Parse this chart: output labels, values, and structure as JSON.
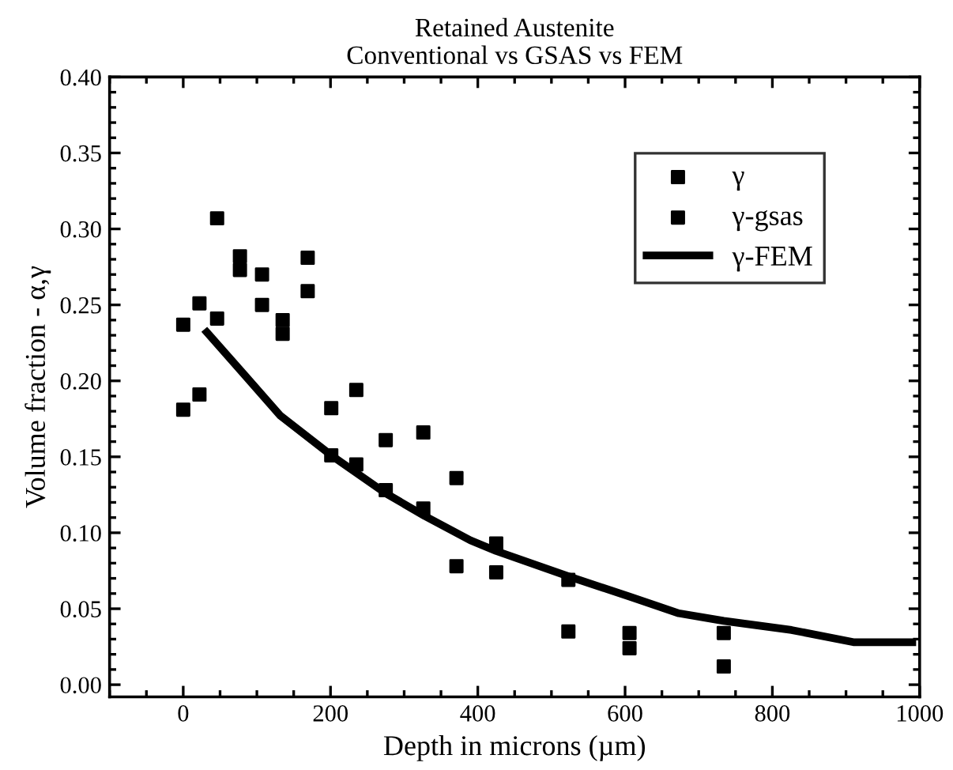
{
  "chart_data": {
    "type": "scatter",
    "title": "Retained Austenite\nConventional vs GSAS vs FEM",
    "xlabel": "Depth in microns (µm)",
    "ylabel": "Volume fraction - α,γ",
    "xlim": [
      -100,
      1000
    ],
    "ylim": [
      -0.008,
      0.4
    ],
    "xticks": [
      {
        "value": -100,
        "label": null
      },
      {
        "value": -50,
        "label": null
      },
      0,
      {
        "value": 50,
        "label": null
      },
      {
        "value": 100,
        "label": null
      },
      {
        "value": 150,
        "label": null
      },
      200,
      {
        "value": 250,
        "label": null
      },
      {
        "value": 300,
        "label": null
      },
      {
        "value": 350,
        "label": null
      },
      400,
      {
        "value": 450,
        "label": null
      },
      {
        "value": 500,
        "label": null
      },
      {
        "value": 550,
        "label": null
      },
      600,
      {
        "value": 650,
        "label": null
      },
      {
        "value": 700,
        "label": null
      },
      {
        "value": 750,
        "label": null
      },
      800,
      {
        "value": 850,
        "label": null
      },
      {
        "value": 900,
        "label": null
      },
      {
        "value": 950,
        "label": null
      },
      1000
    ],
    "yticks": [
      {
        "value": 0,
        "label": "0.00"
      },
      {
        "value": 0.01,
        "label": null
      },
      {
        "value": 0.02,
        "label": null
      },
      {
        "value": 0.03,
        "label": null
      },
      {
        "value": 0.04,
        "label": null
      },
      {
        "value": 0.05,
        "label": "0.05"
      },
      {
        "value": 0.06,
        "label": null
      },
      {
        "value": 0.07,
        "label": null
      },
      {
        "value": 0.08,
        "label": null
      },
      {
        "value": 0.09,
        "label": null
      },
      {
        "value": 0.1,
        "label": "0.10"
      },
      {
        "value": 0.11,
        "label": null
      },
      {
        "value": 0.12,
        "label": null
      },
      {
        "value": 0.13,
        "label": null
      },
      {
        "value": 0.14,
        "label": null
      },
      {
        "value": 0.15,
        "label": "0.15"
      },
      {
        "value": 0.16,
        "label": null
      },
      {
        "value": 0.17,
        "label": null
      },
      {
        "value": 0.18,
        "label": null
      },
      {
        "value": 0.19,
        "label": null
      },
      {
        "value": 0.2,
        "label": "0.20"
      },
      {
        "value": 0.21,
        "label": null
      },
      {
        "value": 0.22,
        "label": null
      },
      {
        "value": 0.23,
        "label": null
      },
      {
        "value": 0.24,
        "label": null
      },
      {
        "value": 0.25,
        "label": "0.25"
      },
      {
        "value": 0.26,
        "label": null
      },
      {
        "value": 0.27,
        "label": null
      },
      {
        "value": 0.28,
        "label": null
      },
      {
        "value": 0.29,
        "label": null
      },
      {
        "value": 0.3,
        "label": "0.30"
      },
      {
        "value": 0.31,
        "label": null
      },
      {
        "value": 0.32,
        "label": null
      },
      {
        "value": 0.33,
        "label": null
      },
      {
        "value": 0.34,
        "label": null
      },
      {
        "value": 0.35,
        "label": "0.35"
      },
      {
        "value": 0.36,
        "label": null
      },
      {
        "value": 0.37,
        "label": null
      },
      {
        "value": 0.38,
        "label": null
      },
      {
        "value": 0.39,
        "label": null
      },
      {
        "value": 0.4,
        "label": "0.40"
      }
    ],
    "grid": false,
    "legend": "top right",
    "marker": "square",
    "series": [
      {
        "name": "γ",
        "color": "#000000",
        "x": [
          0,
          22,
          46,
          77,
          107,
          135,
          169,
          201,
          235,
          275,
          326,
          371,
          425,
          523,
          606,
          734
        ],
        "values": [
          0.237,
          0.251,
          0.307,
          0.282,
          0.27,
          0.24,
          0.281,
          0.182,
          0.194,
          0.161,
          0.166,
          0.136,
          0.093,
          0.069,
          0.034,
          0.034
        ]
      },
      {
        "name": "γ-gsas",
        "color": "#000000",
        "x": [
          0,
          22,
          46,
          77,
          107,
          135,
          169,
          201,
          235,
          275,
          326,
          371,
          425,
          523,
          606,
          734
        ],
        "values": [
          0.181,
          0.191,
          0.241,
          0.273,
          0.25,
          0.231,
          0.259,
          0.151,
          0.145,
          0.128,
          0.116,
          0.078,
          0.074,
          0.035,
          0.024,
          0.012
        ]
      },
      {
        "name": "γ-FEM",
        "type": "line",
        "color": "#000000",
        "line_style": "solid",
        "marker": "none",
        "x": [
          32,
          83,
          132,
          201,
          275,
          328,
          390,
          425,
          525,
          606,
          673,
          734,
          826,
          910,
          990
        ],
        "values": [
          0.232,
          0.204,
          0.177,
          0.151,
          0.126,
          0.111,
          0.095,
          0.088,
          0.071,
          0.058,
          0.047,
          0.042,
          0.036,
          0.028,
          0.028
        ]
      }
    ]
  }
}
